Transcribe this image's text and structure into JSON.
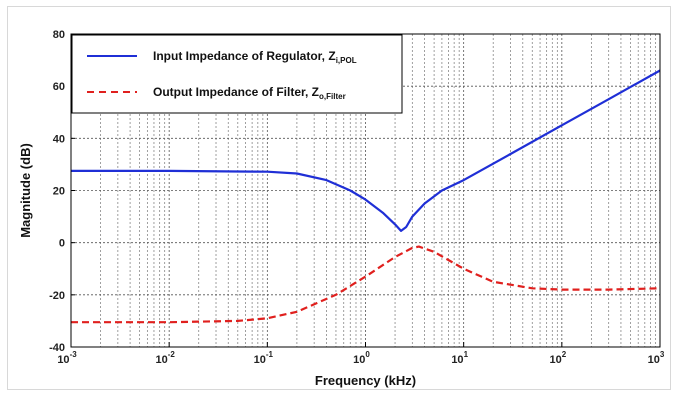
{
  "chart_data": {
    "type": "line",
    "xlabel": "Frequency (kHz)",
    "ylabel": "Magnitude (dB)",
    "xscale": "log",
    "xlim": [
      0.001,
      1000
    ],
    "ylim": [
      -40,
      80
    ],
    "grid": true,
    "legend_position": "top-left",
    "x_tick_labels": [
      {
        "base": "10",
        "exp": "-3"
      },
      {
        "base": "10",
        "exp": "-2"
      },
      {
        "base": "10",
        "exp": "-1"
      },
      {
        "base": "10",
        "exp": "0"
      },
      {
        "base": "10",
        "exp": "1"
      },
      {
        "base": "10",
        "exp": "2"
      },
      {
        "base": "10",
        "exp": "3"
      }
    ],
    "y_ticks": [
      -40,
      -20,
      0,
      20,
      40,
      60,
      80
    ],
    "series": [
      {
        "name": "Input Impedance of Regulator, Z",
        "name_subscript": "i,POL",
        "color": "#1f2fd6",
        "style": "solid",
        "x": [
          0.001,
          0.01,
          0.05,
          0.1,
          0.2,
          0.4,
          0.7,
          1.0,
          1.5,
          2.0,
          2.3,
          2.6,
          3.0,
          4.0,
          6.0,
          10,
          30,
          100,
          300,
          1000
        ],
        "y": [
          27.5,
          27.5,
          27.3,
          27.2,
          26.5,
          24,
          20,
          16.5,
          11.5,
          7,
          4.5,
          6,
          10,
          15,
          20,
          24,
          34,
          45,
          55,
          66
        ]
      },
      {
        "name": "Output Impedance of Filter, Z",
        "name_subscript": "o,Filter",
        "color": "#e0201e",
        "style": "dashed",
        "x": [
          0.001,
          0.01,
          0.05,
          0.1,
          0.2,
          0.5,
          1.0,
          2.0,
          3.0,
          3.5,
          5.0,
          10,
          20,
          50,
          100,
          300,
          1000
        ],
        "y": [
          -30.5,
          -30.5,
          -30,
          -29,
          -26.5,
          -20,
          -13,
          -5.5,
          -2,
          -1.5,
          -3.5,
          -10,
          -15,
          -17.5,
          -18,
          -18,
          -17.5
        ]
      }
    ]
  }
}
